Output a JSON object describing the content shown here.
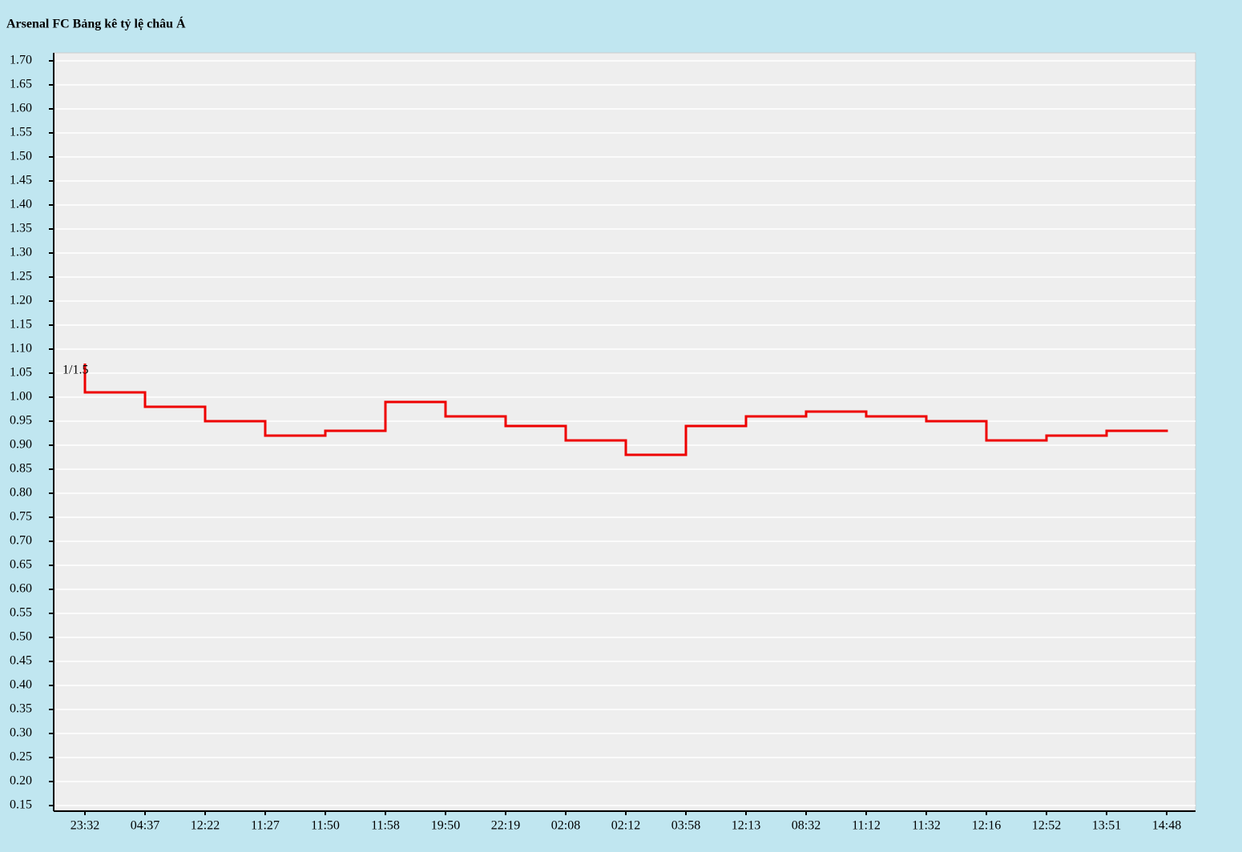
{
  "chart_data": {
    "type": "step",
    "title": "Arsenal FC Bảng kê tỷ lệ châu Á",
    "categories": [
      "23:32",
      "04:37",
      "12:22",
      "11:27",
      "11:50",
      "11:58",
      "19:50",
      "22:19",
      "02:08",
      "02:12",
      "03:58",
      "12:13",
      "08:32",
      "11:12",
      "11:32",
      "12:16",
      "12:52",
      "13:51",
      "14:48"
    ],
    "series": [
      {
        "color": "#ee0000",
        "values": [
          1.01,
          0.98,
          0.95,
          0.92,
          0.93,
          0.99,
          0.96,
          0.94,
          0.91,
          0.88,
          0.94,
          0.96,
          0.97,
          0.96,
          0.95,
          0.91,
          0.92,
          0.93,
          0.93
        ]
      }
    ],
    "annotation": {
      "text": "1/1.5",
      "value": 1.07
    },
    "ylim": [
      0.14,
      1.72
    ],
    "yticks": [
      0.15,
      {
        "value": 0.2,
        "label": "0.20"
      },
      0.25,
      {
        "value": 0.3,
        "label": "0.30"
      },
      0.35,
      {
        "value": 0.4,
        "label": "0.40"
      },
      0.45,
      {
        "value": 0.5,
        "label": "0.50"
      },
      0.55,
      {
        "value": 0.6,
        "label": "0.60"
      },
      0.65,
      {
        "value": 0.7,
        "label": "0.70"
      },
      0.75,
      {
        "value": 0.8,
        "label": "0.80"
      },
      0.85,
      {
        "value": 0.9,
        "label": "0.90"
      },
      0.95,
      {
        "value": 1,
        "label": "1.00"
      },
      1.05,
      {
        "value": 1.1,
        "label": "1.10"
      },
      1.15,
      {
        "value": 1.2,
        "label": "1.20"
      },
      1.25,
      {
        "value": 1.3,
        "label": "1.30"
      },
      1.35,
      {
        "value": 1.4,
        "label": "1.40"
      },
      1.45,
      {
        "value": 1.5,
        "label": "1.50"
      },
      1.55,
      {
        "value": 1.6,
        "label": "1.60"
      },
      1.65,
      {
        "value": 1.7,
        "label": "1.70"
      }
    ],
    "grid": true
  }
}
